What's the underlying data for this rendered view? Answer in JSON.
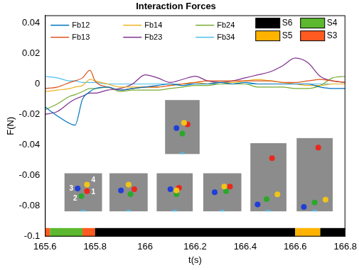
{
  "chart_data": {
    "type": "line",
    "title": "Interaction Forces",
    "x_label": "t(s)",
    "y_label": "F(N)",
    "xlim": [
      165.6,
      166.8
    ],
    "xticks": [
      165.6,
      165.8,
      166,
      166.2,
      166.4,
      166.6,
      166.8
    ],
    "ylim": [
      -0.1,
      0.045
    ],
    "yticks": [
      -0.1,
      -0.08,
      -0.06,
      -0.04,
      -0.02,
      0,
      0.02,
      0.04
    ],
    "grid": false,
    "legend": "upper left",
    "x": [
      165.6,
      165.65,
      165.7,
      165.72,
      165.75,
      165.78,
      165.8,
      165.85,
      165.9,
      165.95,
      166,
      166.05,
      166.1,
      166.15,
      166.2,
      166.25,
      166.3,
      166.35,
      166.4,
      166.45,
      166.5,
      166.55,
      166.6,
      166.65,
      166.7,
      166.75,
      166.8
    ],
    "series": [
      {
        "name": "Fb12",
        "color": "#0072bd",
        "values": [
          -0.015,
          -0.021,
          -0.026,
          -0.027,
          -0.01,
          -0.005,
          -0.003,
          -0.002,
          -0.004,
          -0.003,
          -0.002,
          -0.001,
          0,
          -0.001,
          0,
          0,
          0.001,
          0,
          0.001,
          0,
          0,
          0,
          0,
          0,
          -0.002,
          -0.003,
          -0.003
        ]
      },
      {
        "name": "Fb13",
        "color": "#d95319",
        "values": [
          -0.003,
          -0.002,
          0.001,
          0.002,
          0.004,
          0.009,
          0.002,
          -0.002,
          -0.004,
          -0.003,
          -0.002,
          -0.002,
          -0.001,
          0,
          0.001,
          0.002,
          0.002,
          0.002,
          0.002,
          0.002,
          0.002,
          0.001,
          0.001,
          0.002,
          0.003,
          0.002,
          0.001
        ]
      },
      {
        "name": "Fb14",
        "color": "#edb120",
        "values": [
          -0.005,
          -0.004,
          -0.003,
          -0.002,
          -0.001,
          0.003,
          0.002,
          0,
          -0.002,
          -0.002,
          -0.002,
          -0.002,
          -0.001,
          0,
          0.001,
          0,
          0.001,
          0.001,
          0.002,
          0.003,
          0.002,
          0.001,
          0,
          -0.001,
          -0.001,
          0,
          0
        ]
      },
      {
        "name": "Fb23",
        "color": "#7e2f8e",
        "values": [
          -0.02,
          -0.018,
          -0.012,
          -0.01,
          -0.008,
          -0.006,
          -0.006,
          -0.004,
          -0.003,
          0,
          0.006,
          0.004,
          0.001,
          0.003,
          0.005,
          0.002,
          0.001,
          0.002,
          0.004,
          0.006,
          0.008,
          0.012,
          0.017,
          0.014,
          0.005,
          0.002,
          0.001
        ]
      },
      {
        "name": "Fb24",
        "color": "#77ac30",
        "values": [
          -0.017,
          -0.013,
          -0.008,
          -0.007,
          -0.005,
          -0.003,
          -0.003,
          -0.002,
          -0.005,
          -0.004,
          -0.004,
          -0.004,
          -0.003,
          -0.002,
          -0.001,
          -0.001,
          0,
          0,
          0,
          -0.002,
          -0.002,
          -0.002,
          -0.003,
          -0.003,
          -0.001,
          0.004,
          0.005
        ]
      },
      {
        "name": "Fb34",
        "color": "#4dbeee",
        "values": [
          0.005,
          0.004,
          0.002,
          0.002,
          0.001,
          0.001,
          0.001,
          0,
          0,
          0,
          0,
          0,
          0,
          0,
          0,
          0,
          0,
          0,
          0,
          0,
          0,
          0,
          0,
          0,
          0,
          0,
          0
        ]
      }
    ],
    "states": [
      {
        "name": "S6",
        "color": "#000000"
      },
      {
        "name": "S4",
        "color": "#5cb82e"
      },
      {
        "name": "S5",
        "color": "#ffb300"
      },
      {
        "name": "S3",
        "color": "#ff5a1f"
      }
    ],
    "phases": [
      {
        "state": "S3",
        "start": 165.6,
        "end": 165.62
      },
      {
        "state": "S4",
        "start": 165.62,
        "end": 165.75
      },
      {
        "state": "S3",
        "start": 165.75,
        "end": 165.8
      },
      {
        "state": "S6",
        "start": 165.8,
        "end": 166.6
      },
      {
        "state": "S5",
        "start": 166.6,
        "end": 166.7
      },
      {
        "state": "S6",
        "start": 166.7,
        "end": 166.8
      }
    ],
    "ball_labels": [
      "1",
      "2",
      "3",
      "4"
    ]
  }
}
